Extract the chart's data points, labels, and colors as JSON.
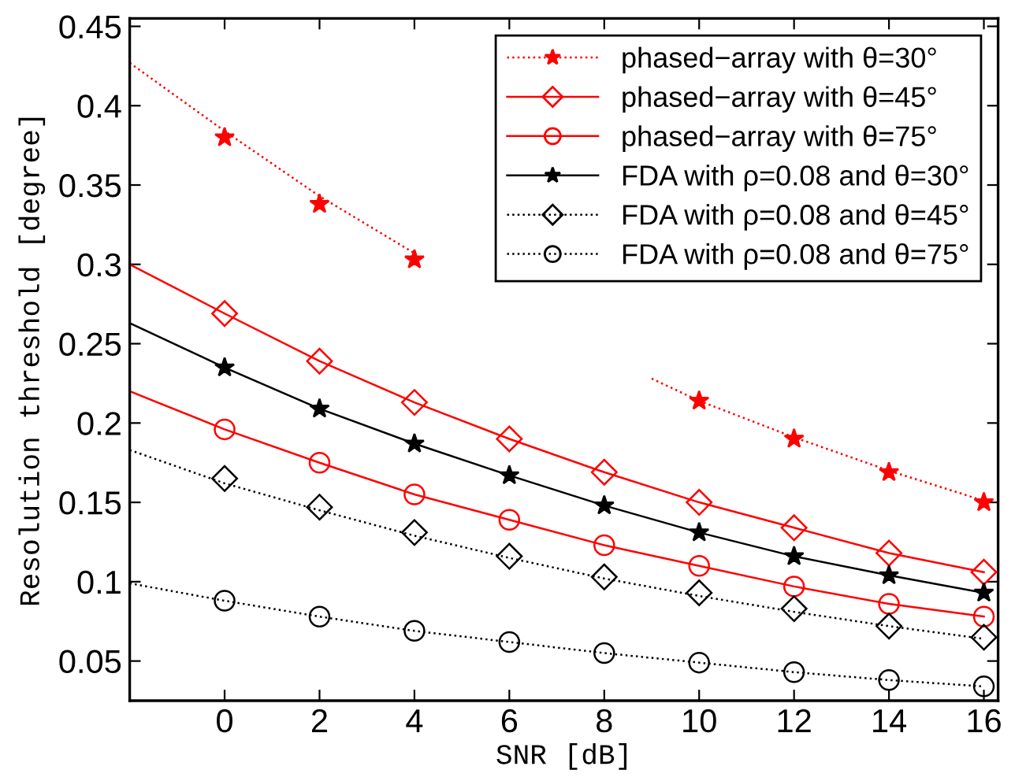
{
  "chart_data": {
    "type": "line",
    "xlabel": "SNR [dB]",
    "ylabel": "Resolution threshold [degree]",
    "xlim": [
      -2,
      16.3
    ],
    "ylim": [
      0.025,
      0.455
    ],
    "xticks": [
      0,
      2,
      4,
      6,
      8,
      10,
      12,
      14,
      16
    ],
    "yticks": [
      0.05,
      0.1,
      0.15,
      0.2,
      0.25,
      0.3,
      0.35,
      0.4,
      0.45
    ],
    "grid": false,
    "legend": "top right",
    "series": [
      {
        "color": "#ff0000",
        "line_style": "dotted",
        "marker": "none",
        "x": [
          -2,
          0,
          2,
          4,
          6,
          8,
          9,
          10,
          12,
          14,
          16
        ],
        "values": [
          0.427,
          0.384,
          0.343,
          0.307,
          null,
          null,
          0.228,
          0.214,
          0.191,
          0.17,
          0.151
        ]
      },
      {
        "type": "scatter",
        "name": "phased−array with θ=30°",
        "color": "#ff0000",
        "line_style": "dotted",
        "marker": "star",
        "x": [
          0,
          2,
          4,
          6,
          8,
          10,
          12,
          14,
          16
        ],
        "values": [
          0.38,
          0.338,
          0.303,
          null,
          null,
          0.214,
          0.19,
          0.169,
          0.15
        ]
      },
      {
        "color": "#ff0000",
        "line_style": "solid",
        "marker": "none",
        "x": [
          -2,
          0,
          2,
          4,
          6,
          8,
          10,
          12,
          14,
          16
        ],
        "values": [
          0.3,
          0.269,
          0.239,
          0.213,
          0.19,
          0.169,
          0.15,
          0.134,
          0.118,
          0.106
        ]
      },
      {
        "type": "scatter",
        "name": "phased−array with θ=45°",
        "color": "#ff0000",
        "line_style": "solid",
        "marker": "diamond",
        "x": [
          0,
          2,
          4,
          6,
          8,
          10,
          12,
          14,
          16
        ],
        "values": [
          0.269,
          0.239,
          0.213,
          0.19,
          0.169,
          0.15,
          0.134,
          0.118,
          0.106
        ]
      },
      {
        "color": "#ff0000",
        "line_style": "solid",
        "marker": "none",
        "x": [
          -2,
          0,
          2,
          4,
          6,
          8,
          10,
          12,
          14,
          16
        ],
        "values": [
          0.22,
          0.196,
          0.175,
          0.155,
          0.139,
          0.123,
          0.11,
          0.097,
          0.086,
          0.078
        ]
      },
      {
        "type": "scatter",
        "name": "phased−array with θ=75°",
        "color": "#ff0000",
        "line_style": "solid",
        "marker": "circle",
        "x": [
          0,
          2,
          4,
          6,
          8,
          10,
          12,
          14,
          16
        ],
        "values": [
          0.196,
          0.175,
          0.155,
          0.139,
          0.123,
          0.11,
          0.097,
          0.086,
          0.078
        ]
      },
      {
        "color": "#000000",
        "line_style": "solid",
        "marker": "none",
        "x": [
          -2,
          0,
          2,
          4,
          6,
          8,
          10,
          12,
          14,
          16
        ],
        "values": [
          0.263,
          0.235,
          0.209,
          0.187,
          0.167,
          0.148,
          0.131,
          0.116,
          0.104,
          0.093
        ]
      },
      {
        "type": "scatter",
        "name": "FDA with ρ=0.08 and θ=30°",
        "color": "#000000",
        "line_style": "solid",
        "marker": "star",
        "x": [
          0,
          2,
          4,
          6,
          8,
          10,
          12,
          14,
          16
        ],
        "values": [
          0.235,
          0.209,
          0.187,
          0.167,
          0.148,
          0.131,
          0.116,
          0.104,
          0.093
        ]
      },
      {
        "color": "#000000",
        "line_style": "dotted",
        "marker": "none",
        "x": [
          -2,
          0,
          2,
          4,
          6,
          8,
          10,
          12,
          14,
          16
        ],
        "values": [
          0.183,
          0.162,
          0.145,
          0.129,
          0.115,
          0.102,
          0.091,
          0.081,
          0.072,
          0.064
        ]
      },
      {
        "type": "scatter",
        "name": "FDA with ρ=0.08 and θ=45°",
        "color": "#000000",
        "line_style": "dotted",
        "marker": "diamond",
        "x": [
          0,
          2,
          4,
          6,
          8,
          10,
          12,
          14,
          16
        ],
        "values": [
          0.165,
          0.147,
          0.131,
          0.116,
          0.103,
          0.093,
          0.083,
          0.072,
          0.065
        ]
      },
      {
        "color": "#000000",
        "line_style": "dotted",
        "marker": "none",
        "x": [
          -2,
          0,
          2,
          4,
          6,
          8,
          10,
          12,
          14,
          16
        ],
        "values": [
          0.099,
          0.088,
          0.078,
          0.069,
          0.062,
          0.055,
          0.049,
          0.043,
          0.038,
          0.034
        ]
      },
      {
        "type": "scatter",
        "name": "FDA with ρ=0.08 and θ=75°",
        "color": "#000000",
        "line_style": "dotted",
        "marker": "circle",
        "x": [
          0,
          2,
          4,
          6,
          8,
          10,
          12,
          14,
          16
        ],
        "values": [
          0.088,
          0.078,
          0.069,
          0.062,
          0.055,
          0.049,
          0.043,
          0.038,
          0.034
        ]
      }
    ]
  }
}
